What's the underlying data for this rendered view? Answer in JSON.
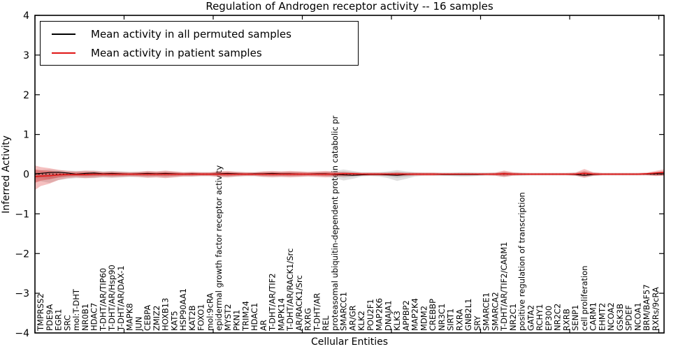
{
  "title": "Regulation of Androgen receptor activity -- 16 samples",
  "axes": {
    "x_label": "Cellular Entities",
    "y_label": "Inferred Activity",
    "y_ticks": [
      {
        "value": 4,
        "label": "4"
      },
      {
        "value": 3,
        "label": "3"
      },
      {
        "value": 2,
        "label": "2"
      },
      {
        "value": 1,
        "label": "1"
      },
      {
        "value": 0,
        "label": "0"
      },
      {
        "value": -1,
        "label": "−1"
      },
      {
        "value": -2,
        "label": "−2"
      },
      {
        "value": -3,
        "label": "−3"
      },
      {
        "value": -4,
        "label": "−4"
      }
    ]
  },
  "legend": {
    "position": "upper left",
    "items": [
      {
        "label": "Mean activity in all permuted samples",
        "color": "#000000"
      },
      {
        "label": "Mean activity in patient samples",
        "color": "#e01515"
      }
    ]
  },
  "colors": {
    "patient_line": "#e01515",
    "permuted_line": "#000000",
    "patient_band": "#dd3030",
    "permuted_band": "#909090",
    "zero_line": "#000000",
    "frame": "#000000"
  },
  "chart_data": {
    "type": "line",
    "title": "Regulation of Androgen receptor activity -- 16 samples",
    "xlabel": "Cellular Entities",
    "ylabel": "Inferred Activity",
    "ylim": [
      -4,
      4
    ],
    "legend_position": "upper left",
    "entities": [
      "TMPRSS2",
      "PDE9A",
      "EGR1",
      "SRC",
      "mol:T-DHT",
      "NR0B1",
      "HDAC7",
      "T-DHT/AR/TIP60",
      "T-DHT/AR/Hsp90",
      "T-DHT/AR/DAX-1",
      "MAPK8",
      "JUN",
      "CEBPA",
      "ZMIZ2",
      "HOXB13",
      "KAT5",
      "HSP90AA1",
      "KAT2B",
      "FOXO1",
      "mol:9cRA",
      "epidermal growth factor receptor activity",
      "MYST2",
      "PKN1",
      "TRIM24",
      "HDAC1",
      "AR",
      "T-DHT/AR/TIF2",
      "MAPK14",
      "T-DHT/AR/RACK1/Src",
      "AR/RACK1/Src",
      "RXRG",
      "T-DHT/AR",
      "REL",
      "proteasomal ubiquitin-dependent protein catabolic pr",
      "SMARCC1",
      "AR/GR",
      "KLK2",
      "POU2F1",
      "MAP2K6",
      "DNAJA1",
      "KLK3",
      "APPBP2",
      "MAP2K4",
      "MDM2",
      "CREBBP",
      "NR3C1",
      "SIRT1",
      "RXRA",
      "GNB2L1",
      "SRY",
      "SMARCE1",
      "SMARCA2",
      "T-DHT/AR/TIF2/CARM1",
      "NR2C1",
      "positive regulation of transcription",
      "GATA2",
      "RCHY1",
      "EP300",
      "NR2C2",
      "RXRB",
      "SENP1",
      "cell proliferation",
      "CARM1",
      "EHMT2",
      "NCOA2",
      "GSK3B",
      "SPDEF",
      "NCOA1",
      "BRM/BAF57",
      "RXRs/9cRA"
    ],
    "series": [
      {
        "name": "Mean activity in all permuted samples",
        "color": "#000000",
        "values": [
          0.02,
          0.04,
          0.05,
          0.03,
          0.0,
          0.02,
          0.03,
          0.01,
          0.02,
          0.01,
          0.0,
          0.01,
          0.02,
          0.01,
          0.02,
          0.01,
          0.0,
          0.01,
          0.0,
          0.0,
          0.01,
          0.02,
          0.01,
          0.0,
          0.01,
          0.01,
          0.02,
          0.01,
          0.01,
          0.0,
          0.0,
          0.01,
          0.01,
          -0.01,
          -0.02,
          -0.03,
          -0.02,
          -0.01,
          -0.01,
          -0.02,
          -0.03,
          -0.01,
          0.0,
          0.0,
          0.0,
          -0.01,
          -0.01,
          -0.01,
          -0.01,
          -0.01,
          0.0,
          0.0,
          0.01,
          0.0,
          0.0,
          0.0,
          0.0,
          0.0,
          0.0,
          0.0,
          -0.01,
          -0.03,
          -0.01,
          0.0,
          0.0,
          0.0,
          0.0,
          0.0,
          0.0,
          0.01
        ]
      },
      {
        "name": "Mean activity in patient samples",
        "color": "#e01515",
        "values": [
          -0.05,
          -0.04,
          -0.02,
          -0.01,
          -0.01,
          -0.01,
          0.0,
          0.0,
          0.0,
          0.0,
          0.0,
          0.0,
          0.0,
          0.0,
          0.0,
          0.0,
          0.0,
          0.0,
          0.0,
          0.0,
          0.0,
          0.0,
          0.0,
          0.0,
          0.0,
          0.0,
          0.0,
          0.0,
          0.0,
          0.0,
          0.0,
          0.0,
          0.0,
          0.0,
          0.01,
          0.01,
          0.0,
          0.0,
          0.0,
          0.0,
          0.0,
          0.0,
          0.0,
          0.0,
          0.0,
          0.0,
          0.0,
          0.0,
          0.0,
          0.0,
          0.0,
          0.0,
          0.01,
          0.0,
          0.0,
          0.0,
          0.0,
          0.0,
          0.0,
          0.0,
          0.0,
          0.02,
          0.0,
          0.0,
          0.0,
          0.0,
          0.0,
          0.0,
          0.01,
          0.03
        ]
      }
    ],
    "bands": [
      {
        "name": "permuted-band",
        "color": "#909090",
        "upper": [
          0.1,
          0.12,
          0.1,
          0.09,
          0.08,
          0.08,
          0.09,
          0.07,
          0.08,
          0.07,
          0.06,
          0.06,
          0.07,
          0.06,
          0.07,
          0.06,
          0.05,
          0.05,
          0.05,
          0.05,
          0.06,
          0.06,
          0.06,
          0.05,
          0.05,
          0.06,
          0.06,
          0.06,
          0.06,
          0.06,
          0.05,
          0.05,
          0.06,
          0.08,
          0.12,
          0.08,
          0.05,
          0.05,
          0.05,
          0.07,
          0.1,
          0.07,
          0.05,
          0.04,
          0.04,
          0.04,
          0.04,
          0.05,
          0.05,
          0.04,
          0.04,
          0.04,
          0.06,
          0.04,
          0.04,
          0.03,
          0.03,
          0.03,
          0.03,
          0.03,
          0.04,
          0.06,
          0.04,
          0.03,
          0.03,
          0.03,
          0.03,
          0.03,
          0.03,
          0.04
        ],
        "lower": [
          -0.18,
          -0.22,
          -0.15,
          -0.12,
          -0.1,
          -0.1,
          -0.1,
          -0.08,
          -0.09,
          -0.08,
          -0.07,
          -0.07,
          -0.08,
          -0.07,
          -0.08,
          -0.07,
          -0.06,
          -0.06,
          -0.05,
          -0.05,
          -0.06,
          -0.07,
          -0.06,
          -0.05,
          -0.05,
          -0.06,
          -0.06,
          -0.06,
          -0.06,
          -0.06,
          -0.05,
          -0.05,
          -0.06,
          -0.1,
          -0.16,
          -0.12,
          -0.06,
          -0.05,
          -0.06,
          -0.1,
          -0.17,
          -0.12,
          -0.06,
          -0.04,
          -0.04,
          -0.04,
          -0.05,
          -0.06,
          -0.06,
          -0.05,
          -0.04,
          -0.04,
          -0.07,
          -0.04,
          -0.04,
          -0.03,
          -0.03,
          -0.03,
          -0.03,
          -0.03,
          -0.04,
          -0.08,
          -0.05,
          -0.03,
          -0.03,
          -0.03,
          -0.03,
          -0.03,
          -0.03,
          -0.04
        ]
      },
      {
        "name": "patient-band",
        "color": "#dd3030",
        "upper": [
          0.18,
          0.15,
          0.11,
          0.08,
          0.07,
          0.09,
          0.08,
          0.06,
          0.07,
          0.06,
          0.05,
          0.06,
          0.08,
          0.07,
          0.09,
          0.07,
          0.05,
          0.06,
          0.05,
          0.05,
          0.07,
          0.08,
          0.06,
          0.05,
          0.05,
          0.07,
          0.08,
          0.07,
          0.08,
          0.07,
          0.06,
          0.07,
          0.08,
          0.06,
          0.06,
          0.05,
          0.04,
          0.04,
          0.04,
          0.04,
          0.05,
          0.04,
          0.04,
          0.04,
          0.04,
          0.03,
          0.03,
          0.03,
          0.03,
          0.03,
          0.03,
          0.04,
          0.09,
          0.05,
          0.03,
          0.03,
          0.03,
          0.03,
          0.03,
          0.03,
          0.04,
          0.13,
          0.05,
          0.03,
          0.03,
          0.03,
          0.03,
          0.03,
          0.04,
          0.08
        ],
        "lower": [
          -0.3,
          -0.24,
          -0.15,
          -0.1,
          -0.08,
          -0.1,
          -0.09,
          -0.07,
          -0.08,
          -0.07,
          -0.06,
          -0.07,
          -0.09,
          -0.08,
          -0.1,
          -0.08,
          -0.06,
          -0.06,
          -0.05,
          -0.05,
          -0.07,
          -0.08,
          -0.06,
          -0.05,
          -0.05,
          -0.07,
          -0.08,
          -0.07,
          -0.08,
          -0.07,
          -0.06,
          -0.07,
          -0.08,
          -0.06,
          -0.06,
          -0.05,
          -0.04,
          -0.04,
          -0.04,
          -0.04,
          -0.05,
          -0.04,
          -0.04,
          -0.04,
          -0.04,
          -0.03,
          -0.03,
          -0.03,
          -0.03,
          -0.03,
          -0.03,
          -0.04,
          -0.07,
          -0.04,
          -0.03,
          -0.03,
          -0.03,
          -0.03,
          -0.03,
          -0.03,
          -0.04,
          -0.09,
          -0.04,
          -0.03,
          -0.03,
          -0.03,
          -0.03,
          -0.03,
          -0.03,
          -0.05
        ]
      }
    ],
    "edges": {
      "left": {
        "permuted_band": [
          0.1,
          -0.2
        ],
        "patient_band": [
          0.22,
          -0.4
        ],
        "permuted_mean": 0.01,
        "patient_mean": -0.06
      },
      "right": {
        "permuted_band": [
          0.04,
          -0.04
        ],
        "patient_band": [
          0.12,
          -0.04
        ],
        "permuted_mean": 0.01,
        "patient_mean": 0.05
      }
    }
  }
}
